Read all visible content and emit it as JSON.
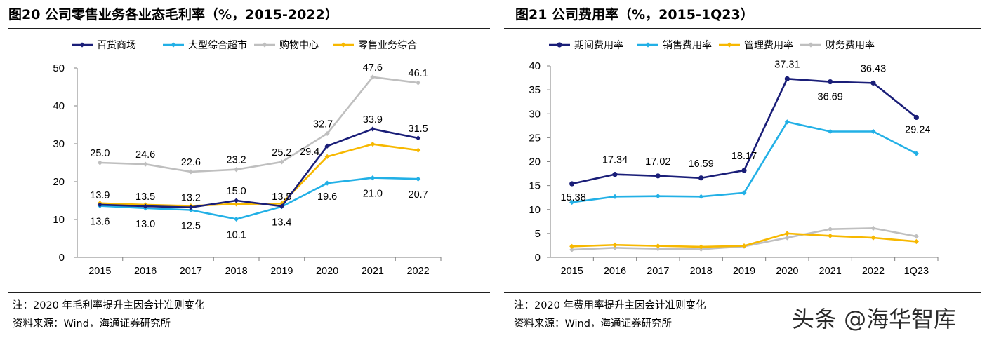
{
  "left": {
    "title": "图20 公司零售业务各业态毛利率（%，2015-2022）",
    "note": "注：2020 年毛利率提升主因会计准则变化",
    "source": "资料来源：Wind，海通证券研究所"
  },
  "right": {
    "title": "图21 公司费用率（%，2015-1Q23）",
    "note": "注：2020 年费用率提升主因会计准则变化",
    "source": "资料来源：Wind，海通证券研究所"
  },
  "watermark": "头条 @海华智库",
  "chart_data": [
    {
      "type": "line",
      "title": "图20 公司零售业务各业态毛利率（%，2015-2022）",
      "categories": [
        "2015",
        "2016",
        "2017",
        "2018",
        "2019",
        "2020",
        "2021",
        "2022"
      ],
      "ylim": [
        0,
        50
      ],
      "yticks": [
        "0",
        "10",
        "20",
        "30",
        "40",
        "50"
      ],
      "legend_position": "top",
      "series": [
        {
          "name": "百货商场",
          "color": "#1a1e78",
          "marker": "diamond",
          "values": [
            13.9,
            13.5,
            13.2,
            15.0,
            13.5,
            29.4,
            33.9,
            31.5
          ],
          "labels": [
            "13.9",
            "13.5",
            "13.2",
            "15.0",
            "13.5",
            "29.4",
            "33.9",
            "31.5"
          ]
        },
        {
          "name": "大型综合超市",
          "color": "#22b0e6",
          "marker": "diamond",
          "values": [
            13.6,
            13.0,
            12.5,
            10.1,
            13.4,
            19.6,
            21.0,
            20.7
          ],
          "labels": [
            "13.6",
            "13.0",
            "12.5",
            "10.1",
            "13.4",
            "19.6",
            "21.0",
            "20.7"
          ]
        },
        {
          "name": "购物中心",
          "color": "#bfbfbf",
          "marker": "diamond",
          "values": [
            25.0,
            24.6,
            22.6,
            23.2,
            25.2,
            32.7,
            47.6,
            46.1
          ],
          "labels": [
            "25.0",
            "24.6",
            "22.6",
            "23.2",
            "25.2",
            "32.7",
            "47.6",
            "46.1"
          ]
        },
        {
          "name": "零售业务综合",
          "color": "#f7b800",
          "marker": "diamond",
          "values": [
            14.3,
            13.9,
            13.6,
            14.1,
            14.2,
            26.6,
            29.9,
            28.3
          ],
          "labels": null
        }
      ]
    },
    {
      "type": "line",
      "title": "图21 公司费用率（%，2015-1Q23）",
      "categories": [
        "2015",
        "2016",
        "2017",
        "2018",
        "2019",
        "2020",
        "2021",
        "2022",
        "1Q23"
      ],
      "ylim": [
        0,
        40
      ],
      "yticks": [
        "0",
        "5",
        "10",
        "15",
        "20",
        "25",
        "30",
        "35",
        "40"
      ],
      "legend_position": "top",
      "series": [
        {
          "name": "期间费用率",
          "color": "#1a1e78",
          "marker": "circle",
          "values": [
            15.38,
            17.34,
            17.02,
            16.59,
            18.17,
            37.31,
            36.69,
            36.43,
            29.24
          ],
          "labels": [
            "15.38",
            "17.34",
            "17.02",
            "16.59",
            "18.17",
            "37.31",
            "36.69",
            "36.43",
            "29.24"
          ]
        },
        {
          "name": "销售费用率",
          "color": "#22b0e6",
          "marker": "diamond",
          "values": [
            11.5,
            12.7,
            12.8,
            12.7,
            13.5,
            28.3,
            26.3,
            26.3,
            21.7
          ],
          "labels": null
        },
        {
          "name": "管理费用率",
          "color": "#f7b800",
          "marker": "diamond",
          "values": [
            2.3,
            2.6,
            2.4,
            2.2,
            2.4,
            5.0,
            4.5,
            4.1,
            3.3
          ],
          "labels": null
        },
        {
          "name": "财务费用率",
          "color": "#bfbfbf",
          "marker": "diamond",
          "values": [
            1.6,
            2.0,
            1.8,
            1.7,
            2.3,
            4.1,
            5.9,
            6.1,
            4.4
          ],
          "labels": null
        }
      ]
    }
  ]
}
